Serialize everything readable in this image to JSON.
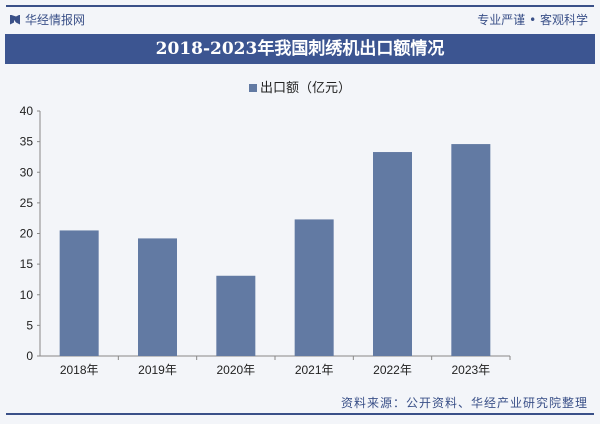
{
  "header": {
    "brand": "华经情报网",
    "slogan": "专业严谨 • 客观科学"
  },
  "title": "2018-2023年我国刺绣机出口额情况",
  "source": "资料来源：公开资料、华经产业研究院整理",
  "chart_data": {
    "type": "bar",
    "title": "2018-2023年我国刺绣机出口额情况",
    "categories": [
      "2018年",
      "2019年",
      "2020年",
      "2021年",
      "2022年",
      "2023年"
    ],
    "series": [
      {
        "name": "出口额（亿元）",
        "values": [
          20.5,
          19.2,
          13.1,
          22.3,
          33.3,
          34.6
        ]
      }
    ],
    "ylim": [
      0,
      40
    ],
    "yticks": [
      0,
      5,
      10,
      15,
      20,
      25,
      30,
      35,
      40
    ],
    "grid": false,
    "legend": "top",
    "colors": {
      "bar": "#627aa3"
    }
  }
}
